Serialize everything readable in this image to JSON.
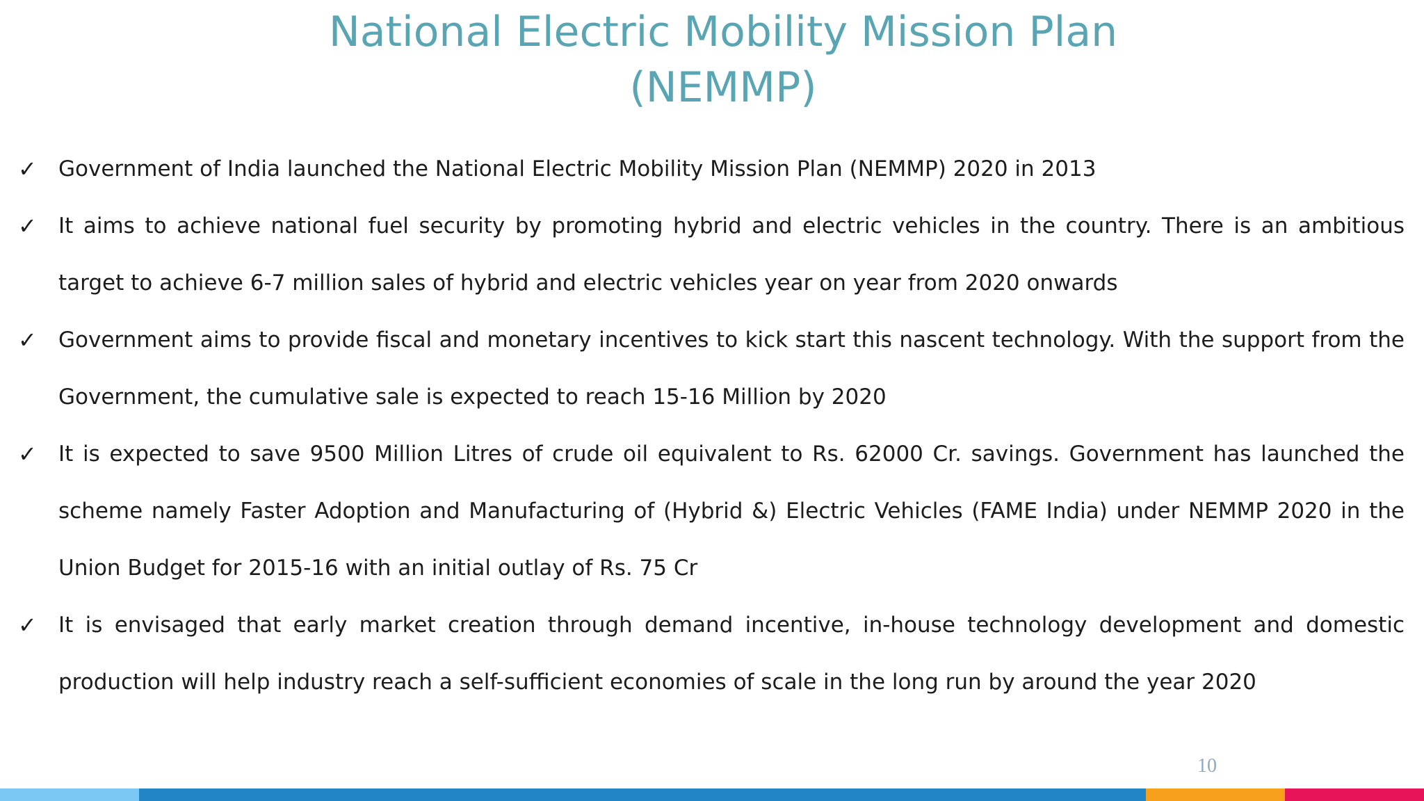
{
  "title": {
    "line1": "National Electric Mobility Mission Plan",
    "line2": "(NEMMP)"
  },
  "bullets": [
    "Government of India launched the National Electric Mobility Mission Plan (NEMMP) 2020 in 2013",
    "It aims to achieve national fuel security by promoting hybrid and electric vehicles in the country. There is an ambitious target to achieve 6-7 million sales of hybrid and electric vehicles year on year from 2020 onwards",
    "Government aims to provide fiscal and monetary incentives to kick start this nascent technology. With the support from the Government, the cumulative sale is expected to reach 15-16 Million by 2020",
    "It is expected to save 9500 Million Litres of crude oil equivalent to Rs. 62000 Cr. savings. Government has launched the scheme namely Faster Adoption and Manufacturing of (Hybrid &) Electric Vehicles (FAME India) under NEMMP 2020 in the Union Budget for 2015-16 with an initial outlay of Rs. 75 Cr",
    "It is envisaged that early market creation through demand incentive, in-house technology development and domestic production will help industry reach a self-sufficient economies of scale in the long run by around the year 2020"
  ],
  "bullet_glyph": "✓",
  "page_number": "10",
  "colors": {
    "title": "#5aa5b3",
    "bar_light_blue": "#7cc8f4",
    "bar_blue": "#2185c6",
    "bar_orange": "#f7a01e",
    "bar_red": "#e8145a"
  }
}
